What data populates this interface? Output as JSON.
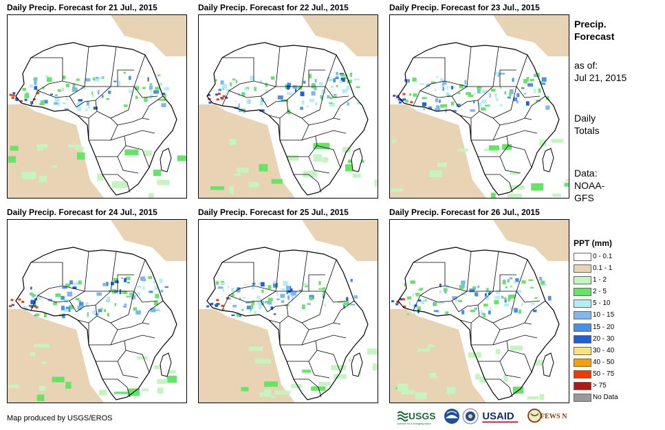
{
  "panels": [
    {
      "title": "Daily Precip. Forecast for 21 Jul., 2015"
    },
    {
      "title": "Daily Precip. Forecast for 22 Jul., 2015"
    },
    {
      "title": "Daily Precip. Forecast for 23 Jul., 2015"
    },
    {
      "title": "Daily Precip. Forecast for 24 Jul., 2015"
    },
    {
      "title": "Daily Precip. Forecast for 25 Jul., 2015"
    },
    {
      "title": "Daily Precip. Forecast for 26 Jul., 2015"
    }
  ],
  "sidebar": {
    "title_line1": "Precip.",
    "title_line2": "Forecast",
    "asof_line1": "as of:",
    "asof_line2": "Jul 21, 2015",
    "totals_line1": "Daily",
    "totals_line2": "Totals",
    "data_line1": "Data:",
    "data_line2": "NOAA-",
    "data_line3": "GFS"
  },
  "legend": {
    "title": "PPT (mm)",
    "items": [
      {
        "label": "0 - 0.1",
        "color": "#ffffff"
      },
      {
        "label": "0.1 - 1",
        "color": "#e8d3b4"
      },
      {
        "label": "1 - 2",
        "color": "#c4f5c0"
      },
      {
        "label": "2 - 5",
        "color": "#66e466"
      },
      {
        "label": "5 - 10",
        "color": "#b3eef7"
      },
      {
        "label": "10 - 15",
        "color": "#7fb8f0"
      },
      {
        "label": "15 - 20",
        "color": "#4a90e8"
      },
      {
        "label": "20 - 30",
        "color": "#1f5fdc"
      },
      {
        "label": "30 - 40",
        "color": "#fde27a"
      },
      {
        "label": "40 - 50",
        "color": "#f5a100"
      },
      {
        "label": "50 - 75",
        "color": "#f03a00"
      },
      {
        "label": "> 75",
        "color": "#b01a12"
      },
      {
        "label": "No Data",
        "color": "#9a9a9a"
      }
    ]
  },
  "credit": "Map produced by USGS/EROS",
  "logos": {
    "usgs": "USGS",
    "usgs_tagline": "science for a changing world",
    "usaid": "USAID",
    "fewsnet": "FEWS NET"
  }
}
